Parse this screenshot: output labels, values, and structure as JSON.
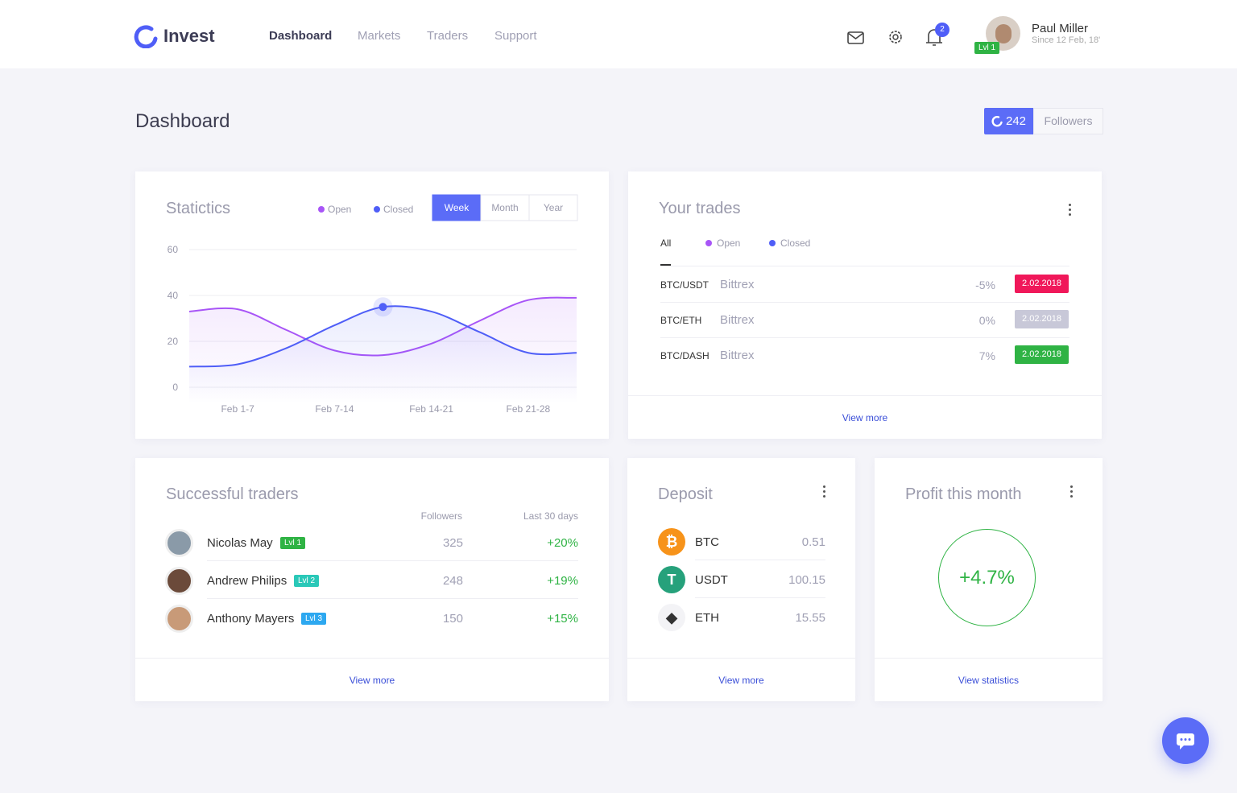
{
  "nav": {
    "brand": "Invest",
    "links": [
      "Dashboard",
      "Markets",
      "Traders",
      "Support"
    ],
    "notifications": 2,
    "user": {
      "name": "Paul Miller",
      "since": "Since 12 Feb, 18'",
      "level": "Lvl 1"
    }
  },
  "page": {
    "title": "Dashboard",
    "followers_count": 242,
    "followers_label": "Followers"
  },
  "chart_data": {
    "type": "line",
    "title": "Statictics",
    "periods": [
      "Week",
      "Month",
      "Year"
    ],
    "categories": [
      null,
      "Feb 1-7",
      null,
      "Feb 7-14",
      null,
      "Feb 14-21",
      null,
      "Feb 21-28",
      null
    ],
    "series": [
      {
        "name": "Open",
        "color": "#a855f7",
        "values": [
          33,
          34,
          25,
          16,
          14,
          19,
          29,
          38,
          39
        ]
      },
      {
        "name": "Closed",
        "color": "#4f5ef7",
        "values": [
          9,
          10,
          17,
          27,
          35,
          33,
          24,
          15,
          15
        ]
      }
    ],
    "ylim": [
      0,
      60
    ],
    "yticks": [
      0,
      20,
      40,
      60
    ],
    "grid": true
  },
  "trades": {
    "title": "Your trades",
    "tabs": [
      "All",
      "Open",
      "Closed"
    ],
    "rows": [
      {
        "pair": "BTC/USDT",
        "exchange": "Bittrex",
        "change": "-5%",
        "date": "2.02.2018"
      },
      {
        "pair": "BTC/ETH",
        "exchange": "Bittrex",
        "change": "0%",
        "date": "2.02.2018"
      },
      {
        "pair": "BTC/DASH",
        "exchange": "Bittrex",
        "change": "7%",
        "date": "2.02.2018"
      }
    ],
    "more": "View more"
  },
  "traders": {
    "title": "Successful traders",
    "columns": [
      "Followers",
      "Last 30 days"
    ],
    "rows": [
      {
        "name": "Nicolas May",
        "level": "Lvl 1",
        "followers": 325,
        "change": "+20%"
      },
      {
        "name": "Andrew Philips",
        "level": "Lvl 2",
        "followers": 248,
        "change": "+19%"
      },
      {
        "name": "Anthony Mayers",
        "level": "Lvl 3",
        "followers": 150,
        "change": "+15%"
      }
    ],
    "more": "View more"
  },
  "deposit": {
    "title": "Deposit",
    "rows": [
      {
        "coin": "BTC",
        "amount": "0.51"
      },
      {
        "coin": "USDT",
        "amount": "100.15"
      },
      {
        "coin": "ETH",
        "amount": "15.55"
      }
    ],
    "more": "View more"
  },
  "profit": {
    "title": "Profit this month",
    "value": "+4.7%",
    "more": "View statistics"
  }
}
